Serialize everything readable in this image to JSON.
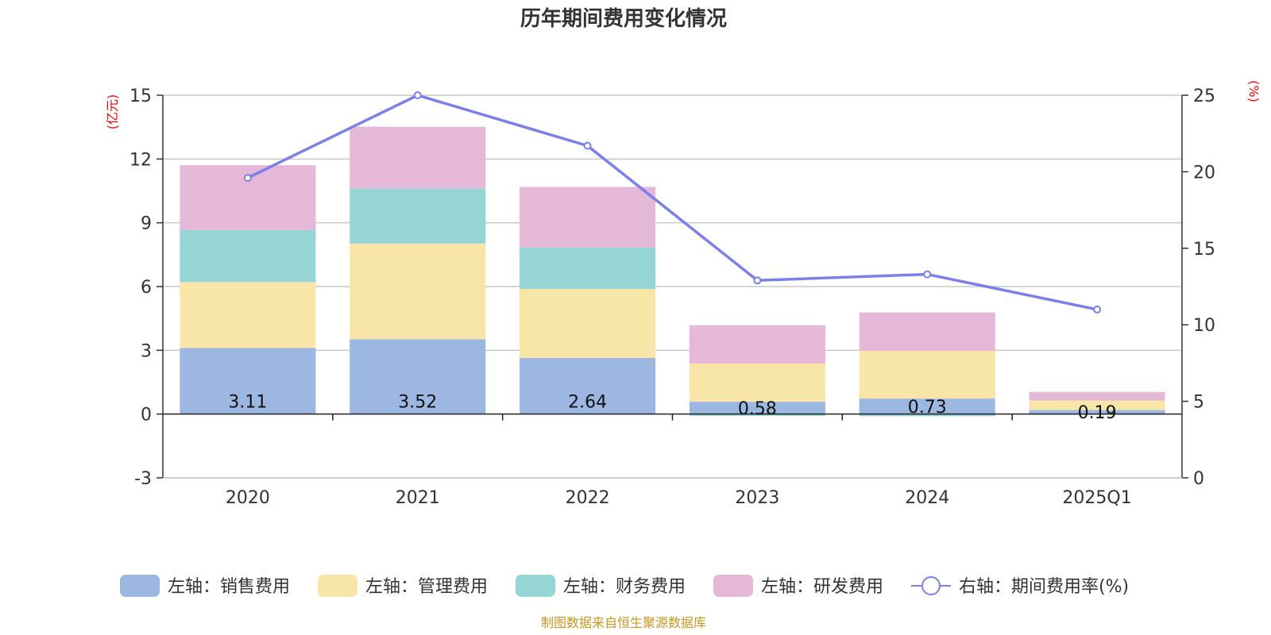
{
  "chart_data": {
    "type": "bar",
    "title": "历年期间费用变化情况",
    "categories": [
      "2020",
      "2021",
      "2022",
      "2023",
      "2024",
      "2025Q1"
    ],
    "left_axis": {
      "unit": "(亿元)",
      "min": -3,
      "max": 15,
      "ticks": [
        "-3",
        "0",
        "3",
        "6",
        "9",
        "12",
        "15"
      ]
    },
    "right_axis": {
      "unit": "(%)",
      "min": 0,
      "max": 25,
      "ticks": [
        "0",
        "5",
        "10",
        "15",
        "20",
        "25"
      ]
    },
    "stacked": true,
    "series": [
      {
        "name": "左轴：销售费用",
        "color": "#9cb7e2",
        "axis": "left",
        "values": [
          3.11,
          3.52,
          2.64,
          0.58,
          0.73,
          0.19
        ],
        "labels": [
          "3.11",
          "3.52",
          "2.64",
          "0.58",
          "0.73",
          "0.19"
        ]
      },
      {
        "name": "左轴：管理费用",
        "color": "#f8e6a8",
        "axis": "left",
        "values": [
          3.1,
          4.5,
          3.25,
          1.8,
          2.25,
          0.45
        ]
      },
      {
        "name": "左轴：财务费用",
        "color": "#96d5d6",
        "axis": "left",
        "values": [
          2.45,
          2.6,
          1.95,
          -0.08,
          -0.1,
          -0.03
        ]
      },
      {
        "name": "左轴：研发费用",
        "color": "#e6b8d8",
        "axis": "left",
        "values": [
          3.05,
          2.9,
          2.85,
          1.8,
          1.8,
          0.4
        ]
      }
    ],
    "line": {
      "name": "右轴：期间费用率(%)",
      "color": "#7b7fe9",
      "axis": "right",
      "values": [
        19.6,
        25.0,
        21.7,
        12.9,
        13.3,
        11.0
      ]
    },
    "grid": true,
    "legend_position": "bottom"
  },
  "source_note": "制图数据来自恒生聚源数据库"
}
